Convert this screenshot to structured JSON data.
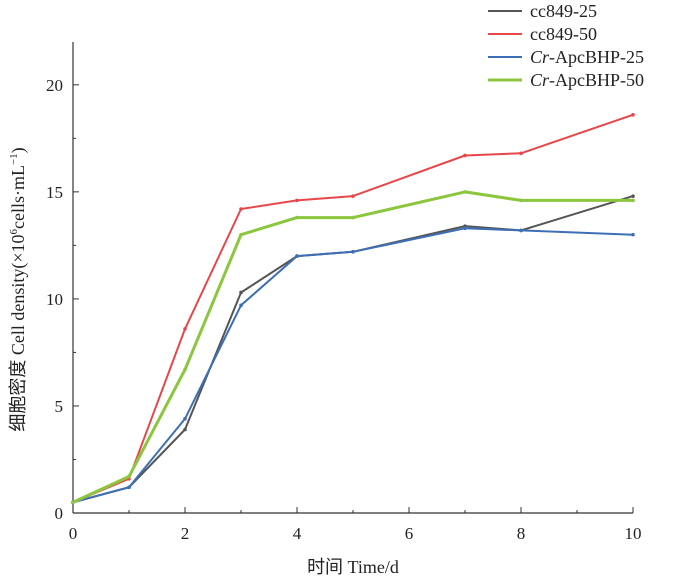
{
  "chart_data": {
    "type": "line",
    "xlabel": "时间 Time/d",
    "ylabel_main": "细胞密度 Cell density(×10",
    "ylabel_sup": "6",
    "ylabel_rest": "cells·mL",
    "ylabel_sup2": "−1",
    "ylabel_close": ")",
    "xlim": [
      0,
      10
    ],
    "ylim": [
      0,
      22
    ],
    "xticks": [
      0,
      2,
      4,
      6,
      8,
      10
    ],
    "yticks": [
      0,
      5,
      10,
      15,
      20
    ],
    "grid": false,
    "legend_position": "top-right",
    "series": [
      {
        "name": "cc849-25",
        "name_italic": "",
        "name_rest": "cc849-25",
        "color": "#555555",
        "x": [
          0,
          1,
          2,
          3,
          4,
          5,
          7,
          8,
          10
        ],
        "y": [
          0.5,
          1.2,
          3.9,
          10.3,
          12.0,
          12.2,
          13.4,
          13.2,
          14.8
        ]
      },
      {
        "name": "cc849-50",
        "name_italic": "",
        "name_rest": "cc849-50",
        "color": "#e8474a",
        "x": [
          0,
          1,
          2,
          3,
          4,
          5,
          7,
          8,
          10
        ],
        "y": [
          0.5,
          1.6,
          8.6,
          14.2,
          14.6,
          14.8,
          16.7,
          16.8,
          18.6
        ]
      },
      {
        "name": "Cr-ApcBHP-25",
        "name_italic": "Cr",
        "name_rest": "-ApcBHP-25",
        "color": "#3d6fb6",
        "x": [
          0,
          1,
          2,
          3,
          4,
          5,
          7,
          8,
          10
        ],
        "y": [
          0.5,
          1.2,
          4.4,
          9.7,
          12.0,
          12.2,
          13.3,
          13.2,
          13.0
        ]
      },
      {
        "name": "Cr-ApcBHP-50",
        "name_italic": "Cr",
        "name_rest": "-ApcBHP-50",
        "color": "#8cc63f",
        "x": [
          0,
          1,
          2,
          3,
          4,
          5,
          7,
          8,
          10
        ],
        "y": [
          0.5,
          1.7,
          6.7,
          13.0,
          13.8,
          13.8,
          15.0,
          14.6,
          14.6
        ]
      }
    ]
  }
}
